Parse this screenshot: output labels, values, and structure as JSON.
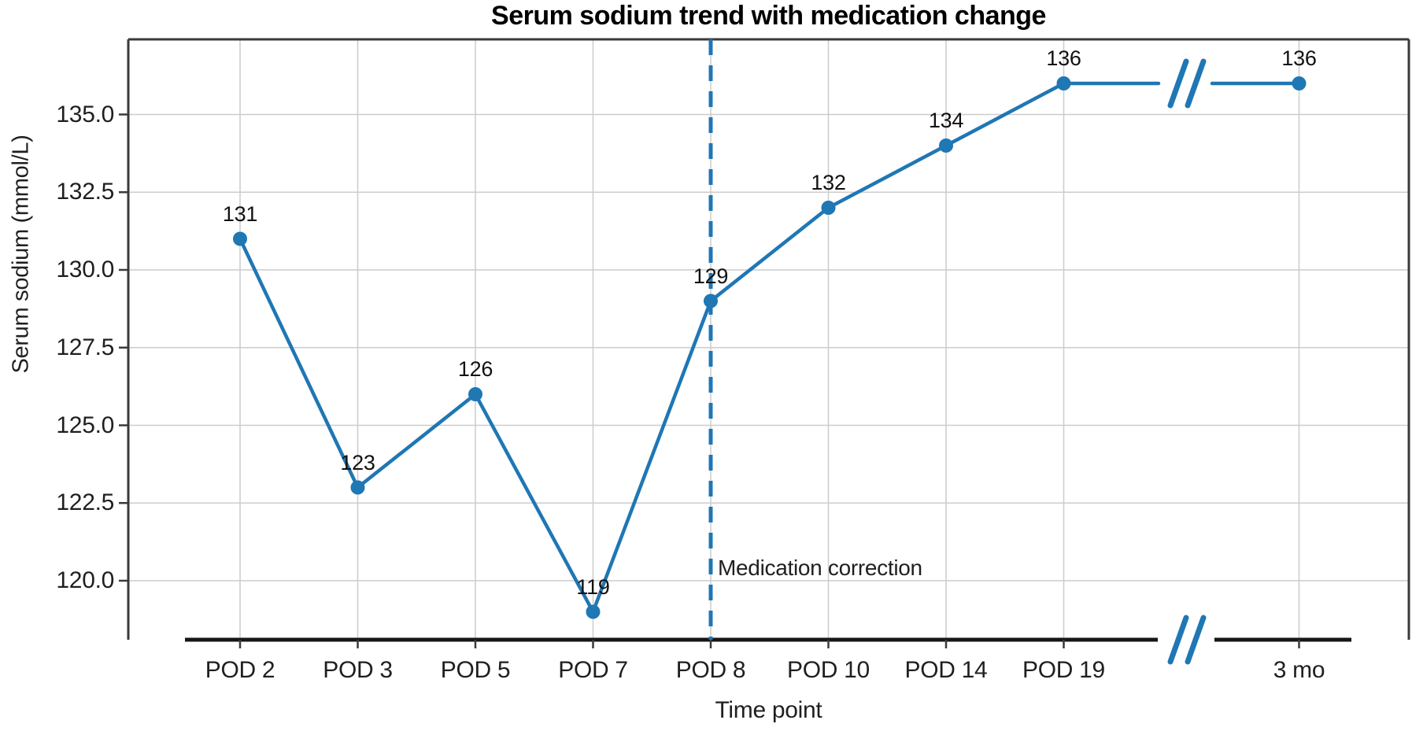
{
  "chart_data": {
    "type": "line",
    "title": "Serum sodium trend with medication change",
    "xlabel": "Time point",
    "ylabel": "Serum sodium (mmol/L)",
    "categories": [
      "POD 2",
      "POD 3",
      "POD 5",
      "POD 7",
      "POD 8",
      "POD 10",
      "POD 14",
      "POD 19",
      "3 mo"
    ],
    "values": [
      131,
      123,
      126,
      119,
      129,
      132,
      134,
      136,
      136
    ],
    "data_labels": [
      "131",
      "123",
      "126",
      "119",
      "129",
      "132",
      "134",
      "136",
      "136"
    ],
    "ytick_values": [
      120.0,
      122.5,
      125.0,
      127.5,
      130.0,
      132.5,
      135.0
    ],
    "ytick_labels": [
      "120.0",
      "122.5",
      "125.0",
      "127.5",
      "130.0",
      "132.5",
      "135.0"
    ],
    "ylim": [
      118.0,
      137.5
    ],
    "grid": true,
    "legend": "none",
    "marker": "circle",
    "annotation": {
      "label": "Medication correction",
      "x_category": "POD 8",
      "style": "dashed-vertical-line"
    },
    "axis_break": {
      "between": [
        "POD 19",
        "3 mo"
      ],
      "symbol": "//"
    },
    "colors": {
      "series": "#1f77b4",
      "grid": "#cccccc",
      "spine": "#3a3a3a",
      "axis_line": "#161616",
      "text": "#1f1f1f",
      "title": "#000000"
    }
  }
}
